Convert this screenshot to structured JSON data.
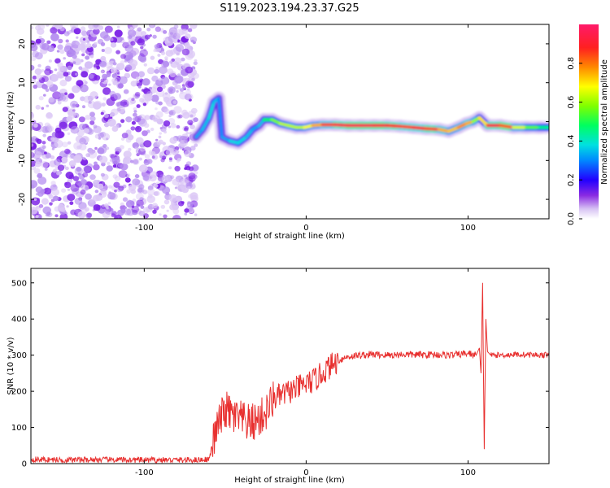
{
  "figure_title": "S119.2023.194.23.37.G25",
  "chart_data": [
    {
      "type": "heatmap",
      "xlabel": "Height of straight line (km)",
      "ylabel": "Frequency (Hz)",
      "xlim": [
        -170,
        150
      ],
      "ylim": [
        -25,
        25
      ],
      "x_ticks": [
        -100,
        0,
        100
      ],
      "y_ticks": [
        -20,
        -10,
        0,
        10,
        20
      ],
      "grid": false,
      "noise_region_x": [
        -170,
        -68
      ],
      "signal_track": [
        {
          "x": -68,
          "y": -4,
          "amp": 0.3
        },
        {
          "x": -64,
          "y": -2,
          "amp": 0.35
        },
        {
          "x": -60,
          "y": 1,
          "amp": 0.35
        },
        {
          "x": -57,
          "y": 5,
          "amp": 0.4
        },
        {
          "x": -54,
          "y": 6,
          "amp": 0.3
        },
        {
          "x": -52,
          "y": -4,
          "amp": 0.3
        },
        {
          "x": -47,
          "y": -5,
          "amp": 0.35
        },
        {
          "x": -42,
          "y": -5.5,
          "amp": 0.4
        },
        {
          "x": -37,
          "y": -4,
          "amp": 0.35
        },
        {
          "x": -33,
          "y": -2,
          "amp": 0.35
        },
        {
          "x": -29,
          "y": -1,
          "amp": 0.3
        },
        {
          "x": -26,
          "y": 0.5,
          "amp": 0.4
        },
        {
          "x": -21,
          "y": 0.5,
          "amp": 0.55
        },
        {
          "x": -16,
          "y": -0.5,
          "amp": 0.6
        },
        {
          "x": -11,
          "y": -1,
          "amp": 0.65
        },
        {
          "x": -6,
          "y": -1.5,
          "amp": 0.6
        },
        {
          "x": -1,
          "y": -1.5,
          "amp": 0.65
        },
        {
          "x": 4,
          "y": -1,
          "amp": 0.7
        },
        {
          "x": 10,
          "y": -0.8,
          "amp": 0.8
        },
        {
          "x": 18,
          "y": -0.8,
          "amp": 0.9
        },
        {
          "x": 26,
          "y": -1,
          "amp": 0.95
        },
        {
          "x": 34,
          "y": -1,
          "amp": 0.95
        },
        {
          "x": 42,
          "y": -1,
          "amp": 0.95
        },
        {
          "x": 50,
          "y": -1,
          "amp": 0.9
        },
        {
          "x": 58,
          "y": -1.2,
          "amp": 0.85
        },
        {
          "x": 66,
          "y": -1.5,
          "amp": 0.85
        },
        {
          "x": 74,
          "y": -1.8,
          "amp": 0.9
        },
        {
          "x": 82,
          "y": -2,
          "amp": 0.8
        },
        {
          "x": 88,
          "y": -2.5,
          "amp": 0.7
        },
        {
          "x": 94,
          "y": -1.5,
          "amp": 0.75
        },
        {
          "x": 99,
          "y": -0.5,
          "amp": 0.8
        },
        {
          "x": 103,
          "y": 0,
          "amp": 0.7
        },
        {
          "x": 107,
          "y": 1,
          "amp": 0.5
        },
        {
          "x": 112,
          "y": -1,
          "amp": 0.9
        },
        {
          "x": 120,
          "y": -1,
          "amp": 0.95
        },
        {
          "x": 128,
          "y": -1.5,
          "amp": 0.7
        },
        {
          "x": 136,
          "y": -1.5,
          "amp": 0.6
        },
        {
          "x": 144,
          "y": -1.5,
          "amp": 0.5
        },
        {
          "x": 150,
          "y": -1.5,
          "amp": 0.4
        }
      ],
      "colorbar": {
        "label": "Normalized spectral amplitude",
        "range": [
          0,
          1
        ],
        "ticks": [
          "0.0",
          "0.2",
          "0.4",
          "0.6",
          "0.8"
        ],
        "tick_values": [
          0,
          0.2,
          0.4,
          0.6,
          0.8
        ]
      }
    },
    {
      "type": "line",
      "xlabel": "Height of straight line (km)",
      "ylabel": "SNR (10 * v/v)",
      "xlim": [
        -170,
        150
      ],
      "ylim": [
        0,
        540
      ],
      "x_ticks": [
        -100,
        0,
        100
      ],
      "y_ticks": [
        0,
        100,
        200,
        300,
        400,
        500
      ],
      "grid": false,
      "series": [
        {
          "color": "#e8302f",
          "x": [
            -170,
            -150,
            -130,
            -110,
            -90,
            -70,
            -60,
            -55,
            -50,
            -45,
            -40,
            -35,
            -30,
            -25,
            -20,
            -15,
            -10,
            -5,
            0,
            5,
            10,
            15,
            20,
            25,
            30,
            35,
            40,
            50,
            60,
            70,
            80,
            90,
            100,
            105,
            107,
            108,
            109,
            110,
            111,
            112,
            114,
            120,
            130,
            140,
            150
          ],
          "values": [
            12,
            10,
            11,
            10,
            10,
            10,
            12,
            100,
            150,
            130,
            120,
            110,
            120,
            140,
            180,
            190,
            200,
            210,
            220,
            230,
            250,
            270,
            285,
            295,
            298,
            300,
            302,
            300,
            302,
            301,
            302,
            300,
            305,
            300,
            320,
            250,
            500,
            40,
            400,
            310,
            300,
            300,
            302,
            301,
            300
          ]
        }
      ]
    }
  ]
}
